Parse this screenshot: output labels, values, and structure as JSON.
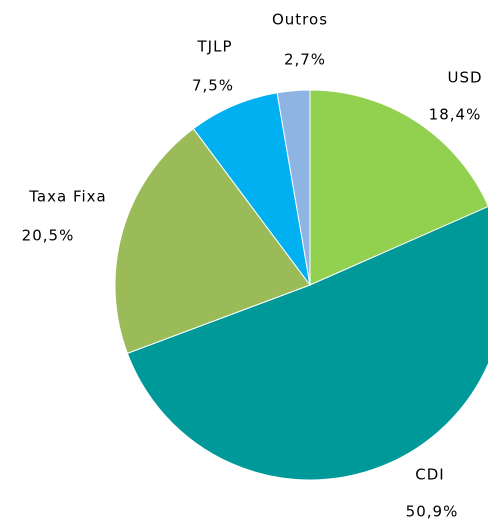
{
  "chart_data": {
    "type": "pie",
    "categories": [
      "USD",
      "CDI",
      "Taxa Fixa",
      "TJLP",
      "Outros"
    ],
    "values": [
      18.4,
      50.9,
      20.5,
      7.5,
      2.7
    ],
    "value_labels": [
      "18,4%",
      "50,9%",
      "20,5%",
      "7,5%",
      "2,7%"
    ],
    "colors": [
      "#92d050",
      "#009999",
      "#9bbb59",
      "#00b0f0",
      "#8db4e2"
    ]
  }
}
